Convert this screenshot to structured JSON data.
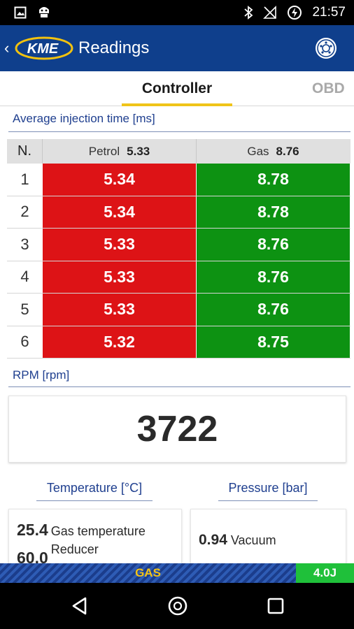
{
  "status_bar": {
    "time": "21:57"
  },
  "app_bar": {
    "logo_text": "KME",
    "title": "Readings"
  },
  "tabs": [
    {
      "label": "Controller",
      "active": true
    },
    {
      "label": "OBD",
      "active": false
    }
  ],
  "injection": {
    "section_title": "Average injection time [ms]",
    "header": {
      "n": "N.",
      "petrol_label": "Petrol",
      "petrol_avg": "5.33",
      "gas_label": "Gas",
      "gas_avg": "8.76"
    },
    "rows": [
      {
        "n": "1",
        "petrol": "5.34",
        "gas": "8.78"
      },
      {
        "n": "2",
        "petrol": "5.34",
        "gas": "8.78"
      },
      {
        "n": "3",
        "petrol": "5.33",
        "gas": "8.76"
      },
      {
        "n": "4",
        "petrol": "5.33",
        "gas": "8.76"
      },
      {
        "n": "5",
        "petrol": "5.33",
        "gas": "8.76"
      },
      {
        "n": "6",
        "petrol": "5.32",
        "gas": "8.75"
      }
    ]
  },
  "rpm": {
    "section_title": "RPM [rpm]",
    "value": "3722"
  },
  "temperature": {
    "title": "Temperature [°C]",
    "items": [
      {
        "value": "25.4",
        "label": "Gas temperature"
      },
      {
        "value": "60.0",
        "label": "Reducer"
      }
    ]
  },
  "pressure": {
    "title": "Pressure [bar]",
    "items": [
      {
        "value": "0.94",
        "label": "Vacuum"
      }
    ]
  },
  "bottom_bar": {
    "mode": "GAS",
    "version": "4.0J"
  },
  "colors": {
    "header": "#0f3f8c",
    "petrol": "#dd1316",
    "gas": "#0d9212",
    "accent": "#f0c419",
    "link": "#1f3f8f"
  }
}
